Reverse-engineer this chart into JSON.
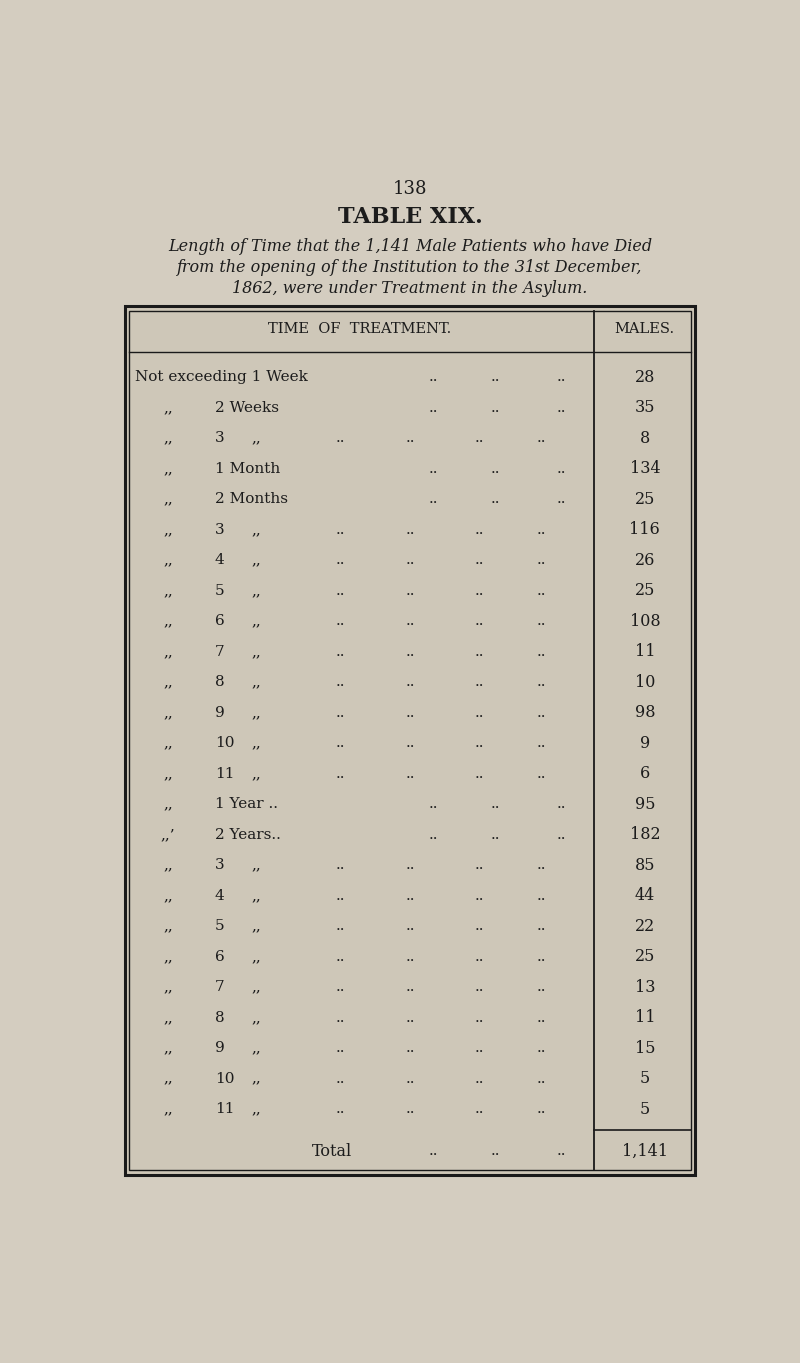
{
  "page_number": "138",
  "table_title": "TABLE XIX.",
  "subtitle_lines": [
    "Length of Time that the 1,141 Male Patients who have Died",
    "from the opening of the Institution to the 31st December,",
    "1862, were under Treatment in the Asylum."
  ],
  "col_header_left": "TIME  OF  TREATMENT.",
  "col_header_right": "MALES.",
  "rows": [
    {
      "type": "special",
      "label": "Not exceeding 1 Week",
      "value": "28"
    },
    {
      "type": "named",
      "prefix": ",,",
      "label": "2 Weeks",
      "value": "35"
    },
    {
      "type": "num_qq",
      "prefix": ",,",
      "num": "3",
      "value": "8"
    },
    {
      "type": "named",
      "prefix": ",,",
      "label": "1 Month",
      "value": "134"
    },
    {
      "type": "named",
      "prefix": ",,",
      "label": "2 Months",
      "value": "25"
    },
    {
      "type": "num_qq",
      "prefix": ",,",
      "num": "3",
      "value": "116"
    },
    {
      "type": "num_qq",
      "prefix": ",,",
      "num": "4",
      "value": "26"
    },
    {
      "type": "num_qq",
      "prefix": ",,",
      "num": "5",
      "value": "25"
    },
    {
      "type": "num_qq",
      "prefix": ",,",
      "num": "6",
      "value": "108"
    },
    {
      "type": "num_qq",
      "prefix": ",,",
      "num": "7",
      "value": "11"
    },
    {
      "type": "num_qq",
      "prefix": ",,",
      "num": "8",
      "value": "10"
    },
    {
      "type": "num_qq",
      "prefix": ",,",
      "num": "9",
      "value": "98"
    },
    {
      "type": "num_qq",
      "prefix": ",,",
      "num": "10",
      "value": "9"
    },
    {
      "type": "num_qq",
      "prefix": ",,",
      "num": "11",
      "value": "6"
    },
    {
      "type": "named",
      "prefix": ",,",
      "label": "1 Year ..",
      "value": "95"
    },
    {
      "type": "named",
      "prefix": ",,’",
      "label": "2 Years..",
      "value": "182"
    },
    {
      "type": "num_qq",
      "prefix": ",,",
      "num": "3",
      "value": "85"
    },
    {
      "type": "num_qq",
      "prefix": ",,",
      "num": "4",
      "value": "44"
    },
    {
      "type": "num_qq",
      "prefix": ",,",
      "num": "5",
      "value": "22"
    },
    {
      "type": "num_qq",
      "prefix": ",,",
      "num": "6",
      "value": "25"
    },
    {
      "type": "num_qq",
      "prefix": ",,",
      "num": "7",
      "value": "13"
    },
    {
      "type": "num_qq",
      "prefix": ",,",
      "num": "8",
      "value": "11"
    },
    {
      "type": "num_qq",
      "prefix": ",,",
      "num": "9",
      "value": "15"
    },
    {
      "type": "num_qq",
      "prefix": ",,",
      "num": "10",
      "value": "5"
    },
    {
      "type": "num_qq",
      "prefix": ",,",
      "num": "11",
      "value": "5"
    }
  ],
  "total_label": "Total",
  "total_value": "1,141",
  "bg_color": "#d4cdc0",
  "table_bg": "#cec7b8",
  "text_color": "#1c1c1c",
  "border_color": "#1a1a1a",
  "page_bg": "#d4cdc0"
}
